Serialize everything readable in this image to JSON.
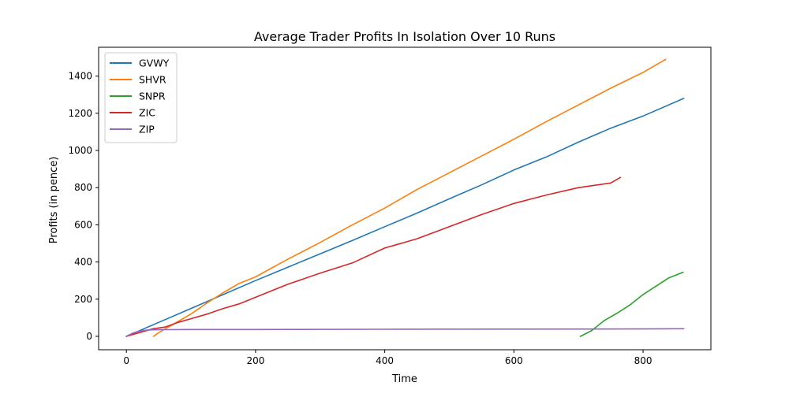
{
  "chart_data": {
    "type": "line",
    "title": "Average Trader Profits In Isolation Over 10 Runs",
    "xlabel": "Time",
    "ylabel": "Profits (in pence)",
    "xlim": [
      -43,
      905
    ],
    "ylim": [
      -72,
      1555
    ],
    "xticks": [
      0,
      200,
      400,
      600,
      800
    ],
    "yticks": [
      0,
      200,
      400,
      600,
      800,
      1000,
      1200,
      1400
    ],
    "grid": false,
    "legend_position": "top-left",
    "series": [
      {
        "name": "GVWY",
        "color": "#1f77b4",
        "x": [
          0,
          50,
          100,
          150,
          200,
          250,
          300,
          350,
          400,
          450,
          500,
          550,
          600,
          650,
          700,
          750,
          800,
          863
        ],
        "y": [
          0,
          75,
          150,
          225,
          300,
          372,
          444,
          516,
          590,
          663,
          740,
          815,
          895,
          965,
          1045,
          1120,
          1185,
          1280
        ]
      },
      {
        "name": "SHVR",
        "color": "#ff7f0e",
        "x": [
          42,
          50,
          75,
          100,
          125,
          150,
          175,
          200,
          250,
          300,
          350,
          400,
          450,
          500,
          550,
          600,
          650,
          700,
          750,
          800,
          835
        ],
        "y": [
          0,
          20,
          70,
          120,
          180,
          235,
          285,
          320,
          415,
          505,
          600,
          690,
          790,
          880,
          970,
          1060,
          1155,
          1245,
          1335,
          1420,
          1490
        ]
      },
      {
        "name": "SNPR",
        "color": "#2ca02c",
        "x": [
          703,
          720,
          740,
          760,
          780,
          800,
          820,
          840,
          862
        ],
        "y": [
          0,
          30,
          85,
          125,
          170,
          225,
          270,
          315,
          345
        ]
      },
      {
        "name": "ZIC",
        "color": "#d62728",
        "x": [
          0,
          20,
          40,
          60,
          80,
          100,
          125,
          150,
          175,
          200,
          250,
          300,
          350,
          400,
          450,
          500,
          550,
          600,
          650,
          700,
          750,
          765
        ],
        "y": [
          0,
          20,
          40,
          50,
          75,
          95,
          120,
          150,
          175,
          210,
          280,
          340,
          395,
          475,
          525,
          590,
          655,
          715,
          760,
          800,
          825,
          855
        ]
      },
      {
        "name": "ZIP",
        "color": "#9467bd",
        "x": [
          0,
          10,
          20,
          30,
          40,
          60,
          100,
          200,
          400,
          600,
          800,
          863
        ],
        "y": [
          0,
          18,
          28,
          33,
          35,
          36,
          37,
          37,
          38,
          39,
          40,
          41
        ]
      }
    ]
  }
}
